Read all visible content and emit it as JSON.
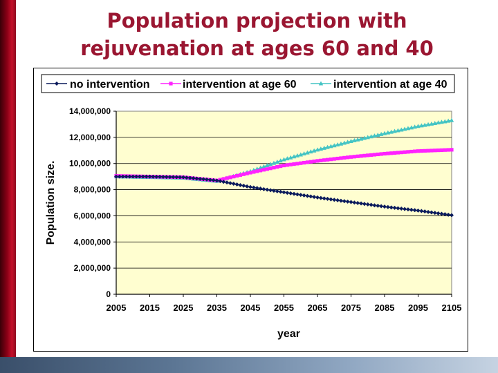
{
  "slide": {
    "title_line1": "Population projection with",
    "title_line2": "rejuvenation at ages 60 and 40"
  },
  "colors": {
    "title": "#9a1631",
    "plot_bg": "#fffed0",
    "no_intervention": "#0a1a5c",
    "intervention_60": "#ff22ff",
    "intervention_40": "#44c4c4"
  },
  "chart_data": {
    "type": "line",
    "title": "",
    "xlabel": "year",
    "ylabel": "Population size.",
    "xlim": [
      2005,
      2105
    ],
    "ylim": [
      0,
      14000000
    ],
    "x_ticks": [
      2005,
      2015,
      2025,
      2035,
      2045,
      2055,
      2065,
      2075,
      2085,
      2095,
      2105
    ],
    "y_ticks": [
      0,
      2000000,
      4000000,
      6000000,
      8000000,
      10000000,
      12000000,
      14000000
    ],
    "y_tick_labels": [
      "0",
      "2,000,000",
      "4,000,000",
      "6,000,000",
      "8,000,000",
      "10,000,000",
      "12,000,000",
      "14,000,000"
    ],
    "x_tick_labels": [
      "2005",
      "2015",
      "2025",
      "2035",
      "2045",
      "2055",
      "2065",
      "2075",
      "2085",
      "2095",
      "2105"
    ],
    "grid": true,
    "legend_position": "top",
    "x": [
      2005,
      2015,
      2025,
      2035,
      2045,
      2055,
      2065,
      2075,
      2085,
      2095,
      2105
    ],
    "series": [
      {
        "name": "no intervention",
        "marker": "diamond",
        "values": [
          9000000,
          9000000,
          8950000,
          8700000,
          8200000,
          7800000,
          7400000,
          7050000,
          6700000,
          6400000,
          6050000
        ]
      },
      {
        "name": "intervention at age 60",
        "marker": "square",
        "values": [
          9050000,
          9000000,
          8950000,
          8700000,
          9300000,
          9850000,
          10200000,
          10500000,
          10750000,
          10950000,
          11050000
        ]
      },
      {
        "name": "intervention at age 40",
        "marker": "triangle",
        "values": [
          9000000,
          8950000,
          8900000,
          8650000,
          9400000,
          10300000,
          11050000,
          11700000,
          12300000,
          12850000,
          13300000
        ]
      }
    ]
  }
}
